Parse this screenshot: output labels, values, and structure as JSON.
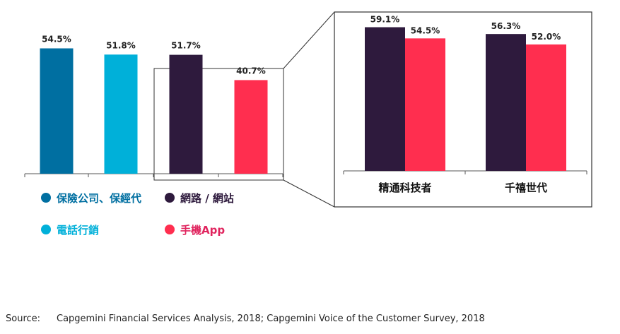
{
  "colors": {
    "insurance": "#006FA1",
    "phone": "#00B0D9",
    "web": "#2E1A3D",
    "app": "#FF2E4F",
    "axis": "#555555",
    "frame": "#333333",
    "legend_app_text": "#E0245E"
  },
  "chart_data": [
    {
      "type": "bar",
      "categories": [
        "保險公司、保經代",
        "電話行銷",
        "網路 / 網站",
        "手機App"
      ],
      "values": [
        54.5,
        51.8,
        51.7,
        40.7
      ],
      "value_labels": [
        "54.5%",
        "51.8%",
        "51.7%",
        "40.7%"
      ],
      "series_colors": [
        "#006FA1",
        "#00B0D9",
        "#2E1A3D",
        "#FF2E4F"
      ],
      "ylim": [
        0,
        70
      ],
      "grid": false,
      "legend": [
        {
          "label": "保險公司、保經代",
          "color": "#006FA1"
        },
        {
          "label": "網路 / 網站",
          "color": "#2E1A3D"
        },
        {
          "label": "電話行銷",
          "color": "#00B0D9"
        },
        {
          "label": "手機App",
          "color": "#FF2E4F"
        }
      ],
      "legend_placement": "bottom"
    },
    {
      "type": "bar",
      "categories": [
        "精通科技者",
        "千禧世代"
      ],
      "series": [
        {
          "color": "#2E1A3D",
          "values": [
            59.1,
            56.3
          ],
          "value_labels": [
            "59.1%",
            "56.3%"
          ]
        },
        {
          "color": "#FF2E4F",
          "values": [
            54.5,
            52.0
          ],
          "value_labels": [
            "54.5%",
            "52.0%"
          ]
        }
      ],
      "ylim": [
        0,
        70
      ],
      "grid": false
    }
  ],
  "footer": {
    "source_label": "Source:",
    "source_text": "Capgemini Financial Services Analysis, 2018; Capgemini Voice of the Customer Survey, 2018"
  }
}
